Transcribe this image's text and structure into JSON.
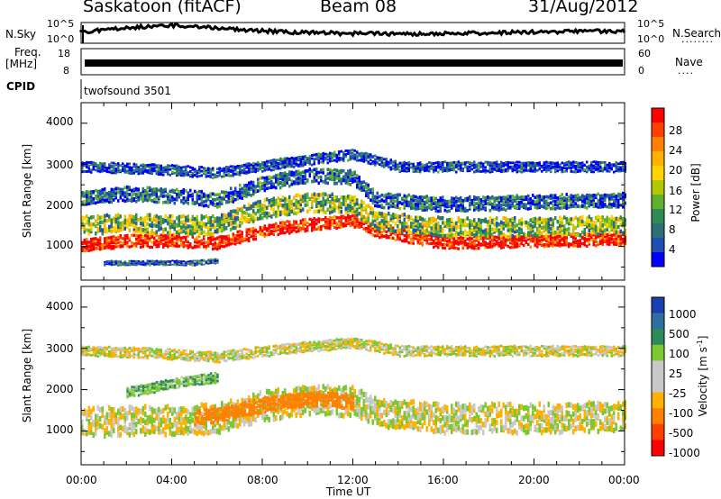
{
  "header": {
    "station": "Saskatoon (fitACF)",
    "beam": "Beam 08",
    "date": "31/Aug/2012"
  },
  "panels": {
    "noise": {
      "left_label": "N.Sky",
      "right_label": "N.Search",
      "left_ticks": [
        "10^5",
        "10^0"
      ],
      "right_ticks": [
        "10^5",
        "10^0"
      ],
      "dots": "........"
    },
    "freq": {
      "left_label": "Freq.",
      "left_unit": "[MHz]",
      "right_label": "Nave",
      "left_ticks": [
        "18",
        "8"
      ],
      "right_ticks": [
        "60",
        "0"
      ],
      "dots": "...."
    },
    "cpid": {
      "label": "CPID",
      "value": "twofsound 3501"
    }
  },
  "colorbars": {
    "power": {
      "title": "Power [dB]",
      "ticks": [
        "28",
        "24",
        "20",
        "16",
        "12",
        "8",
        "4"
      ],
      "colors": [
        "#ff0000",
        "#ff4000",
        "#ff8000",
        "#ffb000",
        "#ffd200",
        "#b4c800",
        "#60b030",
        "#2e8b57",
        "#2e6e78",
        "#1e50b4",
        "#0000ff"
      ]
    },
    "velocity": {
      "title": "Velocity [m s",
      "title_sup": "-1",
      "title_end": "]",
      "ticks": [
        "1000",
        "500",
        "100",
        "25",
        "-25",
        "-100",
        "-500",
        "-1000"
      ],
      "colors": [
        "#1a3fb0",
        "#2e6ea0",
        "#2e8b57",
        "#7cc832",
        "#c8c8c8",
        "#c8c8c8",
        "#ffb000",
        "#ff8000",
        "#ff4000",
        "#ff0000"
      ]
    }
  },
  "chart_data": [
    {
      "type": "heatmap",
      "title": "Power",
      "ylabel": "Slant Range [km]",
      "xlabel": "Time UT",
      "x_ticks": [
        "00:00",
        "04:00",
        "08:00",
        "12:00",
        "16:00",
        "20:00",
        "00:00"
      ],
      "y_ticks": [
        "4000",
        "3000",
        "2000",
        "1000"
      ],
      "xlim": [
        0,
        24
      ],
      "ylim": [
        180,
        4500
      ],
      "colorbar_ticks": [
        28,
        24,
        20,
        16,
        12,
        8,
        4
      ],
      "bands": [
        {
          "x": [
            0,
            2,
            4,
            6,
            8,
            10,
            12,
            13,
            16,
            20,
            24
          ],
          "y": [
            1000,
            1100,
            1100,
            1050,
            1350,
            1500,
            1600,
            1350,
            1050,
            1100,
            1150
          ],
          "width": 300,
          "level": 28
        },
        {
          "x": [
            0,
            2,
            4,
            6,
            8,
            10,
            12,
            13,
            16,
            20,
            24
          ],
          "y": [
            1500,
            1550,
            1500,
            1500,
            1900,
            2050,
            2000,
            1600,
            1450,
            1450,
            1500
          ],
          "width": 450,
          "level": 14
        },
        {
          "x": [
            0,
            2,
            4,
            6,
            8,
            10,
            12,
            13,
            16,
            20,
            24
          ],
          "y": [
            2150,
            2250,
            2200,
            2100,
            2500,
            2700,
            2650,
            2100,
            2000,
            2050,
            2100
          ],
          "width": 350,
          "level": 8
        },
        {
          "x": [
            0,
            3,
            6,
            9,
            12,
            14,
            18,
            24
          ],
          "y": [
            2900,
            2850,
            2750,
            3000,
            3200,
            2900,
            2900,
            2900
          ],
          "width": 250,
          "level": 6
        },
        {
          "x": [
            1,
            3,
            5,
            6
          ],
          "y": [
            550,
            550,
            550,
            600
          ],
          "width": 120,
          "level": 8
        }
      ]
    },
    {
      "type": "heatmap",
      "title": "Velocity",
      "ylabel": "Slant Range [km]",
      "xlabel": "Time UT",
      "x_ticks": [
        "00:00",
        "04:00",
        "08:00",
        "12:00",
        "16:00",
        "20:00",
        "00:00"
      ],
      "y_ticks": [
        "4000",
        "3000",
        "2000",
        "1000"
      ],
      "xlim": [
        0,
        24
      ],
      "ylim": [
        180,
        4500
      ],
      "colorbar_ticks": [
        1000,
        500,
        100,
        25,
        -25,
        -100,
        -500,
        -1000
      ],
      "bands": [
        {
          "x": [
            0,
            2,
            4,
            6,
            8,
            10,
            12,
            13,
            16,
            20,
            24
          ],
          "y": [
            1200,
            1250,
            1250,
            1300,
            1600,
            1750,
            1700,
            1450,
            1300,
            1300,
            1350
          ],
          "width": 700,
          "level": 0
        },
        {
          "x": [
            5,
            6,
            8,
            10,
            11,
            12
          ],
          "y": [
            1300,
            1350,
            1600,
            1750,
            1750,
            1650
          ],
          "width": 350,
          "level": -200
        },
        {
          "x": [
            2,
            3,
            4,
            5,
            6
          ],
          "y": [
            1900,
            2000,
            2100,
            2200,
            2250
          ],
          "width": 250,
          "level": 80
        },
        {
          "x": [
            0,
            3,
            6,
            9,
            12,
            14,
            18,
            24
          ],
          "y": [
            2900,
            2850,
            2750,
            2950,
            3100,
            2900,
            2900,
            2900
          ],
          "width": 250,
          "level": 0
        }
      ]
    }
  ]
}
